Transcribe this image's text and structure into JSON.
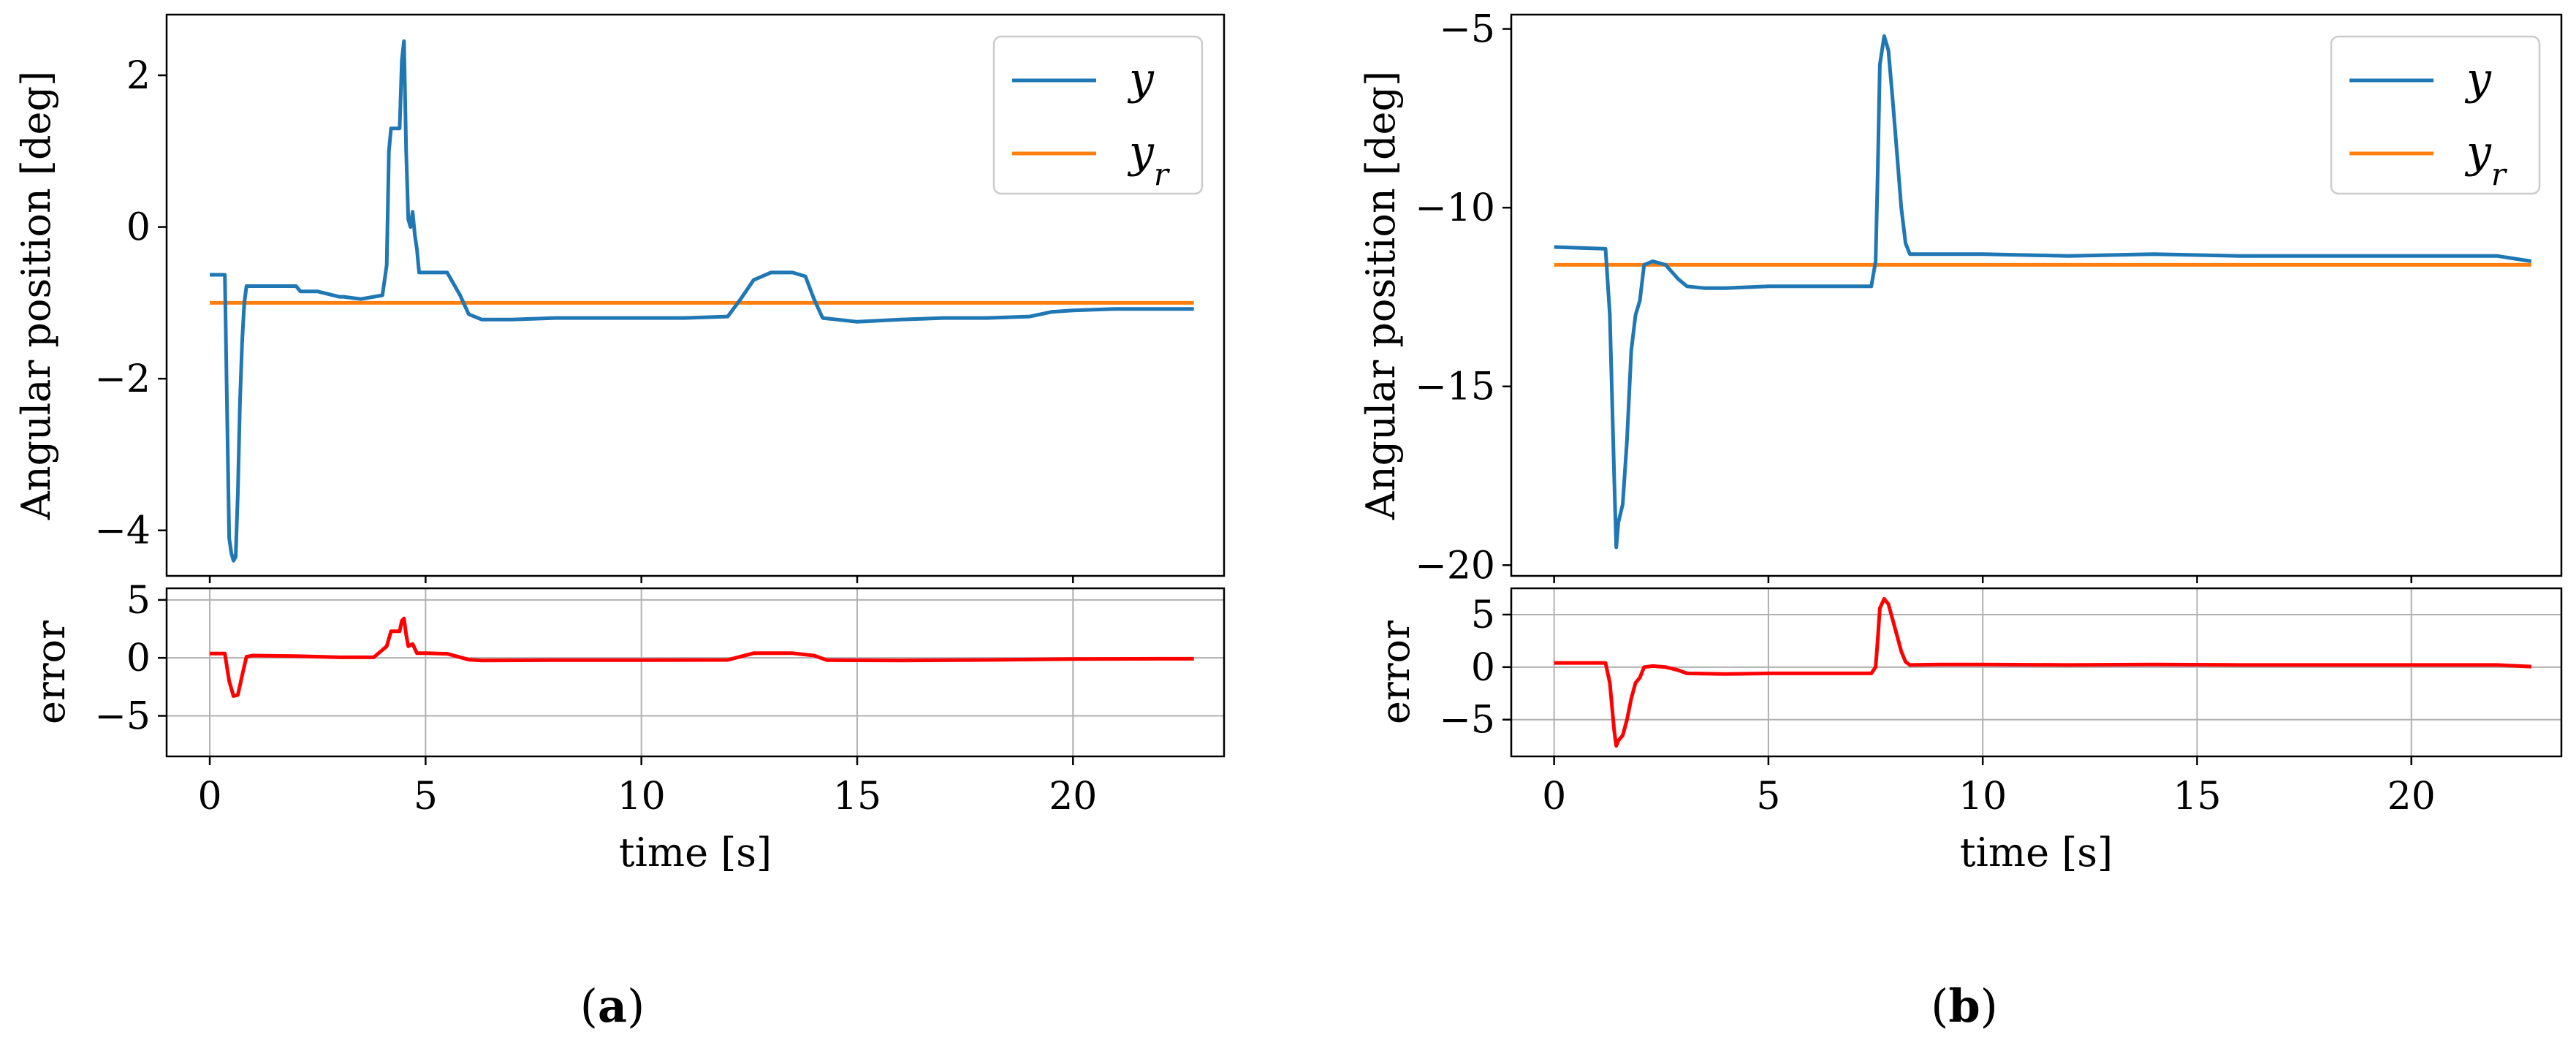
{
  "chart_data": [
    {
      "type": "line",
      "panel_label_open": "(",
      "panel_label": "a",
      "panel_label_close": ")",
      "top": {
        "ylabel": "Angular position [deg]",
        "xlim": [
          -1,
          23.5
        ],
        "ylim": [
          -4.6,
          2.8
        ],
        "yticks": [
          2,
          0,
          -2,
          -4
        ],
        "yticklabels": [
          "2",
          "0",
          "−2",
          "−4"
        ],
        "legend": [
          "y",
          "y_r"
        ],
        "legend_position": "top-right",
        "series": [
          {
            "name": "y",
            "color": "#1f77b4",
            "x": [
              0,
              0.35,
              0.4,
              0.45,
              0.5,
              0.55,
              0.6,
              0.65,
              0.7,
              0.75,
              0.8,
              0.85,
              0.9,
              1.0,
              1.5,
              2.0,
              2.1,
              2.5,
              3.0,
              3.1,
              3.5,
              3.8,
              4.0,
              4.1,
              4.15,
              4.2,
              4.3,
              4.4,
              4.45,
              4.5,
              4.55,
              4.6,
              4.65,
              4.7,
              4.75,
              4.8,
              4.85,
              4.9,
              5.0,
              5.5,
              5.8,
              6.0,
              6.3,
              7,
              8,
              9,
              10,
              11,
              12,
              12.3,
              12.6,
              13.0,
              13.5,
              13.8,
              14.0,
              14.2,
              15,
              16,
              17,
              18,
              19,
              19.5,
              20,
              21,
              22,
              22.8
            ],
            "y": [
              -0.63,
              -0.63,
              -2.4,
              -4.1,
              -4.3,
              -4.4,
              -4.35,
              -3.5,
              -2.3,
              -1.5,
              -1.0,
              -0.78,
              -0.78,
              -0.78,
              -0.78,
              -0.78,
              -0.85,
              -0.85,
              -0.92,
              -0.92,
              -0.95,
              -0.92,
              -0.9,
              -0.5,
              1.0,
              1.3,
              1.3,
              1.3,
              2.2,
              2.45,
              1.0,
              0.1,
              0.0,
              0.2,
              -0.1,
              -0.3,
              -0.6,
              -0.6,
              -0.6,
              -0.6,
              -0.9,
              -1.15,
              -1.22,
              -1.22,
              -1.2,
              -1.2,
              -1.2,
              -1.2,
              -1.18,
              -0.95,
              -0.7,
              -0.6,
              -0.6,
              -0.65,
              -0.95,
              -1.2,
              -1.25,
              -1.22,
              -1.2,
              -1.2,
              -1.18,
              -1.12,
              -1.1,
              -1.08,
              -1.08,
              -1.08
            ]
          },
          {
            "name": "y_r",
            "color": "#ff7f0e",
            "x": [
              0,
              22.8
            ],
            "y": [
              -1.0,
              -1.0
            ]
          }
        ]
      },
      "error": {
        "ylabel": "error",
        "ylim": [
          -8.5,
          6
        ],
        "yticks": [
          5,
          0,
          -5
        ],
        "yticklabels": [
          "5",
          "0",
          "−5"
        ],
        "series": [
          {
            "name": "error",
            "color": "#ff0000",
            "x": [
              0,
              0.35,
              0.45,
              0.55,
              0.65,
              0.75,
              0.85,
              1.0,
              2,
              3,
              3.8,
              4.1,
              4.2,
              4.4,
              4.45,
              4.5,
              4.55,
              4.6,
              4.7,
              4.8,
              5.0,
              5.5,
              6.0,
              6.3,
              8,
              10,
              12,
              12.6,
              13.5,
              14.0,
              14.3,
              16,
              18,
              20,
              22,
              22.8
            ],
            "y": [
              0.37,
              0.37,
              -2.0,
              -3.3,
              -3.2,
              -1.5,
              0.1,
              0.2,
              0.15,
              0.05,
              0.05,
              1.0,
              2.3,
              2.3,
              3.2,
              3.4,
              2.0,
              1.0,
              1.2,
              0.4,
              0.4,
              0.35,
              -0.15,
              -0.22,
              -0.2,
              -0.2,
              -0.18,
              0.4,
              0.4,
              0.2,
              -0.2,
              -0.22,
              -0.18,
              -0.1,
              -0.08,
              -0.08
            ]
          }
        ]
      },
      "xlabel": "time [s]",
      "xticks": [
        0,
        5,
        10,
        15,
        20
      ],
      "xticklabels": [
        "0",
        "5",
        "10",
        "15",
        "20"
      ]
    },
    {
      "type": "line",
      "panel_label_open": "(",
      "panel_label": "b",
      "panel_label_close": ")",
      "top": {
        "ylabel": "Angular position [deg]",
        "xlim": [
          -1,
          23.5
        ],
        "ylim": [
          -20.3,
          -4.6
        ],
        "yticks": [
          -5,
          -10,
          -15,
          -20
        ],
        "yticklabels": [
          "−5",
          "−10",
          "−15",
          "−20"
        ],
        "legend": [
          "y",
          "y_r"
        ],
        "legend_position": "top-right",
        "series": [
          {
            "name": "y",
            "color": "#1f77b4",
            "x": [
              0,
              1.2,
              1.3,
              1.4,
              1.45,
              1.5,
              1.6,
              1.7,
              1.8,
              1.9,
              2.0,
              2.1,
              2.3,
              2.6,
              2.9,
              3.1,
              3.5,
              4,
              5,
              6,
              7,
              7.4,
              7.5,
              7.55,
              7.6,
              7.7,
              7.8,
              7.9,
              8.0,
              8.1,
              8.2,
              8.3,
              9,
              10,
              12,
              14,
              16,
              18,
              20,
              21,
              22,
              22.8
            ],
            "y": [
              -11.1,
              -11.15,
              -13.0,
              -17.5,
              -19.5,
              -18.8,
              -18.3,
              -16.5,
              -14.0,
              -13.0,
              -12.6,
              -11.6,
              -11.5,
              -11.6,
              -12.0,
              -12.2,
              -12.25,
              -12.25,
              -12.2,
              -12.2,
              -12.2,
              -12.2,
              -11.5,
              -9.0,
              -6.0,
              -5.2,
              -5.6,
              -7.0,
              -8.5,
              -10.0,
              -11.0,
              -11.3,
              -11.3,
              -11.3,
              -11.35,
              -11.3,
              -11.35,
              -11.35,
              -11.35,
              -11.35,
              -11.35,
              -11.5
            ]
          },
          {
            "name": "y_r",
            "color": "#ff7f0e",
            "x": [
              0,
              22.8
            ],
            "y": [
              -11.6,
              -11.6
            ]
          }
        ]
      },
      "error": {
        "ylabel": "error",
        "ylim": [
          -8.5,
          7.5
        ],
        "yticks": [
          5,
          0,
          -5
        ],
        "yticklabels": [
          "5",
          "0",
          "−5"
        ],
        "series": [
          {
            "name": "error",
            "color": "#ff0000",
            "x": [
              0,
              1.2,
              1.3,
              1.4,
              1.45,
              1.5,
              1.6,
              1.7,
              1.8,
              1.9,
              2.0,
              2.1,
              2.3,
              2.6,
              2.9,
              3.1,
              4,
              5,
              6,
              7,
              7.4,
              7.5,
              7.55,
              7.6,
              7.7,
              7.8,
              7.9,
              8.0,
              8.1,
              8.2,
              8.3,
              9,
              10,
              12,
              14,
              16,
              18,
              20,
              22,
              22.8
            ],
            "y": [
              0.4,
              0.4,
              -1.5,
              -6.0,
              -7.5,
              -7.0,
              -6.5,
              -5.0,
              -3.0,
              -1.5,
              -1.0,
              0.0,
              0.1,
              0.0,
              -0.3,
              -0.6,
              -0.65,
              -0.6,
              -0.6,
              -0.6,
              -0.6,
              0.0,
              2.6,
              5.6,
              6.5,
              6.0,
              4.5,
              3.0,
              1.5,
              0.5,
              0.2,
              0.25,
              0.25,
              0.2,
              0.25,
              0.2,
              0.2,
              0.2,
              0.2,
              0.05
            ]
          }
        ]
      },
      "xlabel": "time [s]",
      "xticks": [
        0,
        5,
        10,
        15,
        20
      ],
      "xticklabels": [
        "0",
        "5",
        "10",
        "15",
        "20"
      ]
    }
  ]
}
